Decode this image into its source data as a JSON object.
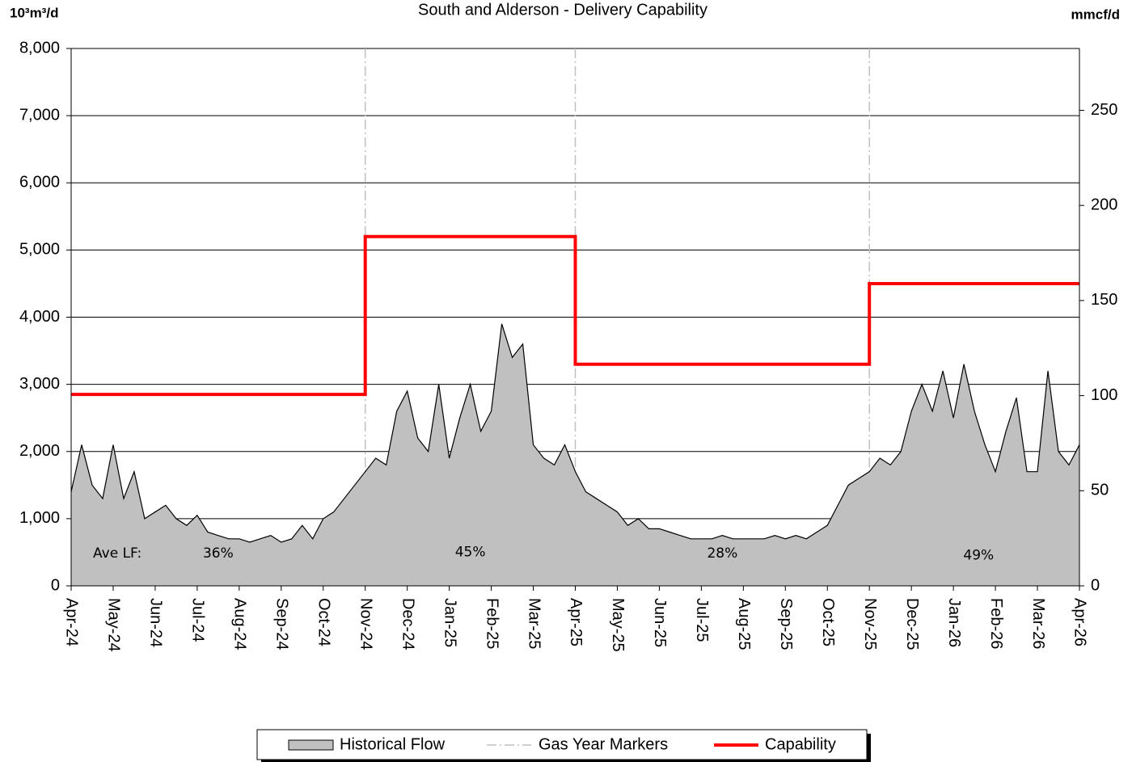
{
  "chart_data": {
    "type": "line",
    "title": "South and Alderson - Delivery Capability",
    "ylabel": "10³m³/d",
    "y2label": "mmcf/d",
    "xlim": [
      0,
      24
    ],
    "xticks": [
      {
        "value": 0,
        "label": "Apr-24"
      },
      {
        "value": 1,
        "label": "May-24"
      },
      {
        "value": 2,
        "label": "Jun-24"
      },
      {
        "value": 3,
        "label": "Jul-24"
      },
      {
        "value": 4,
        "label": "Aug-24"
      },
      {
        "value": 5,
        "label": "Sep-24"
      },
      {
        "value": 6,
        "label": "Oct-24"
      },
      {
        "value": 7,
        "label": "Nov-24"
      },
      {
        "value": 8,
        "label": "Dec-24"
      },
      {
        "value": 9,
        "label": "Jan-25"
      },
      {
        "value": 10,
        "label": "Feb-25"
      },
      {
        "value": 11,
        "label": "Mar-25"
      },
      {
        "value": 12,
        "label": "Apr-25"
      },
      {
        "value": 13,
        "label": "May-25"
      },
      {
        "value": 14,
        "label": "Jun-25"
      },
      {
        "value": 15,
        "label": "Jul-25"
      },
      {
        "value": 16,
        "label": "Aug-25"
      },
      {
        "value": 17,
        "label": "Sep-25"
      },
      {
        "value": 18,
        "label": "Oct-25"
      },
      {
        "value": 19,
        "label": "Nov-25"
      },
      {
        "value": 20,
        "label": "Dec-25"
      },
      {
        "value": 21,
        "label": "Jan-26"
      },
      {
        "value": 22,
        "label": "Feb-26"
      },
      {
        "value": 23,
        "label": "Mar-26"
      },
      {
        "value": 24,
        "label": "Apr-26"
      }
    ],
    "ylim": [
      0,
      8000
    ],
    "yticks": [
      0,
      {
        "value": 1000,
        "label": "1,000"
      },
      {
        "value": 2000,
        "label": "2,000"
      },
      {
        "value": 3000,
        "label": "3,000"
      },
      {
        "value": 4000,
        "label": "4,000"
      },
      {
        "value": 5000,
        "label": "5,000"
      },
      {
        "value": 6000,
        "label": "6,000"
      },
      {
        "value": 7000,
        "label": "7,000"
      },
      {
        "value": 8000,
        "label": "8,000"
      }
    ],
    "y2lim": [
      0,
      282.5
    ],
    "y2ticks": [
      0,
      50,
      100,
      150,
      200,
      250
    ],
    "grid": true,
    "series": [
      {
        "name": "Historical Flow",
        "style": "area",
        "color": "#c0c0c0",
        "line_color": "#000000",
        "x": [
          0,
          0.25,
          0.5,
          0.75,
          1,
          1.25,
          1.5,
          1.75,
          2,
          2.25,
          2.5,
          2.75,
          3,
          3.25,
          3.5,
          3.75,
          4,
          4.25,
          4.5,
          4.75,
          5,
          5.25,
          5.5,
          5.75,
          6,
          6.25,
          6.5,
          6.75,
          7,
          7.25,
          7.5,
          7.75,
          8,
          8.25,
          8.5,
          8.75,
          9,
          9.25,
          9.5,
          9.75,
          10,
          10.25,
          10.5,
          10.75,
          11,
          11.25,
          11.5,
          11.75,
          12,
          12.25,
          12.5,
          12.75,
          13,
          13.25,
          13.5,
          13.75,
          14,
          14.25,
          14.5,
          14.75,
          15,
          15.25,
          15.5,
          15.75,
          16,
          16.25,
          16.5,
          16.75,
          17,
          17.25,
          17.5,
          17.75,
          18,
          18.25,
          18.5,
          18.75,
          19,
          19.25,
          19.5,
          19.75,
          20,
          20.25,
          20.5,
          20.75,
          21,
          21.25,
          21.5,
          21.75,
          22,
          22.25,
          22.5,
          22.75,
          23,
          23.25,
          23.5,
          23.75,
          24
        ],
        "values": [
          1400,
          2100,
          1500,
          1300,
          2100,
          1300,
          1700,
          1000,
          1100,
          1200,
          1000,
          900,
          1050,
          800,
          750,
          700,
          700,
          650,
          700,
          750,
          650,
          700,
          900,
          700,
          1000,
          1100,
          1300,
          1500,
          1700,
          1900,
          1800,
          2600,
          2900,
          2200,
          2000,
          3000,
          1900,
          2500,
          3000,
          2300,
          2600,
          3900,
          3400,
          3600,
          2100,
          1900,
          1800,
          2100,
          1700,
          1400,
          1300,
          1200,
          1100,
          900,
          1000,
          850,
          850,
          800,
          750,
          700,
          700,
          700,
          750,
          700,
          700,
          700,
          700,
          750,
          700,
          750,
          700,
          800,
          900,
          1200,
          1500,
          1600,
          1700,
          1900,
          1800,
          2000,
          2600,
          3000,
          2600,
          3200,
          2500,
          3300,
          2600,
          2100,
          1700,
          2300,
          2800,
          1700,
          1700,
          3200,
          2000,
          1800,
          2100
        ]
      },
      {
        "name": "Capability",
        "style": "step",
        "color": "#ff0000",
        "x": [
          0,
          7,
          7,
          12,
          12,
          19,
          19,
          24
        ],
        "values": [
          2850,
          2850,
          5200,
          5200,
          3300,
          3300,
          4500,
          4500
        ]
      }
    ],
    "gas_year_markers": {
      "name": "Gas Year Markers",
      "color": "#c0c0c0",
      "x": [
        7,
        12,
        19
      ]
    },
    "annotations": [
      {
        "text": "Ave LF:",
        "x": 1.1,
        "y": 480
      },
      {
        "text": "36%",
        "x": 3.5,
        "y": 480
      },
      {
        "text": "45%",
        "x": 9.5,
        "y": 500
      },
      {
        "text": "28%",
        "x": 15.5,
        "y": 480
      },
      {
        "text": "49%",
        "x": 21.6,
        "y": 450
      }
    ],
    "legend": "bottom"
  }
}
